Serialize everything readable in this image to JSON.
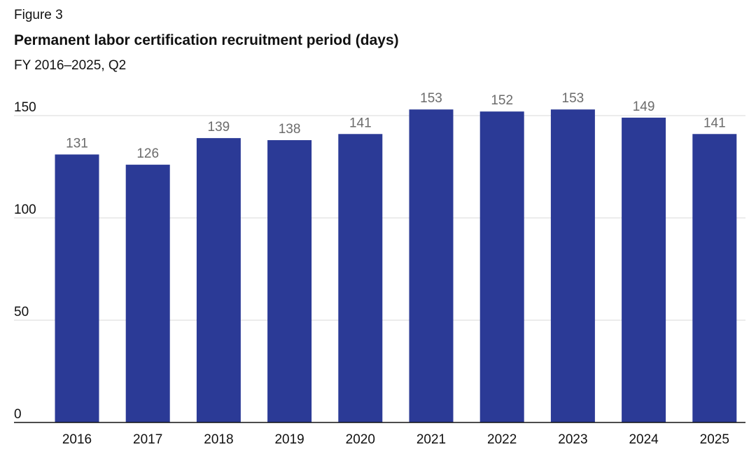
{
  "figure": {
    "label": "Figure 3"
  },
  "chart_data": {
    "type": "bar",
    "title": "Permanent labor certification recruitment period (days)",
    "subtitle": "FY 2016–2025, Q2",
    "xlabel": "",
    "ylabel": "",
    "categories": [
      "2016",
      "2017",
      "2018",
      "2019",
      "2020",
      "2021",
      "2022",
      "2023",
      "2024",
      "2025"
    ],
    "values": [
      131,
      126,
      139,
      138,
      141,
      153,
      152,
      153,
      149,
      141
    ],
    "ylim": [
      0,
      150
    ],
    "yticks": [
      0,
      50,
      100,
      150
    ],
    "grid": true,
    "legend": "none",
    "colors": {
      "bar": "#2b3a96",
      "grid": "#d9d9d9",
      "baseline": "#111111",
      "data_label": "#6b6b6b"
    }
  }
}
